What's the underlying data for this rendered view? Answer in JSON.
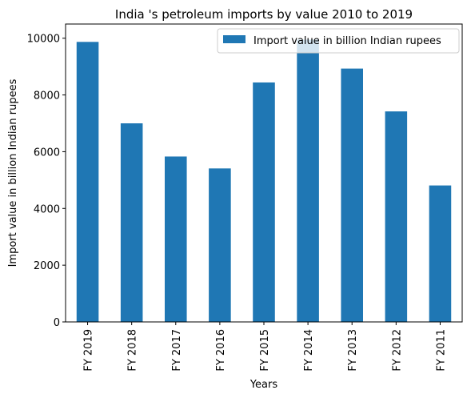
{
  "chart_data": {
    "type": "bar",
    "title": "India 's petroleum imports by value 2010 to 2019",
    "xlabel": "Years",
    "ylabel": "Import value in billion Indian rupees",
    "categories": [
      "FY 2019",
      "FY 2018",
      "FY 2017",
      "FY 2016",
      "FY 2015",
      "FY 2014",
      "FY 2013",
      "FY 2012",
      "FY 2011"
    ],
    "series": [
      {
        "name": "Import value in billion Indian rupees",
        "values": [
          9870,
          7000,
          5830,
          5410,
          8440,
          9950,
          8930,
          7420,
          4810
        ],
        "color": "#1f77b4"
      }
    ],
    "ylim": [
      0,
      10500
    ],
    "yticks": [
      0,
      2000,
      4000,
      6000,
      8000,
      10000
    ],
    "grid": false,
    "legend_position": "top-right"
  }
}
